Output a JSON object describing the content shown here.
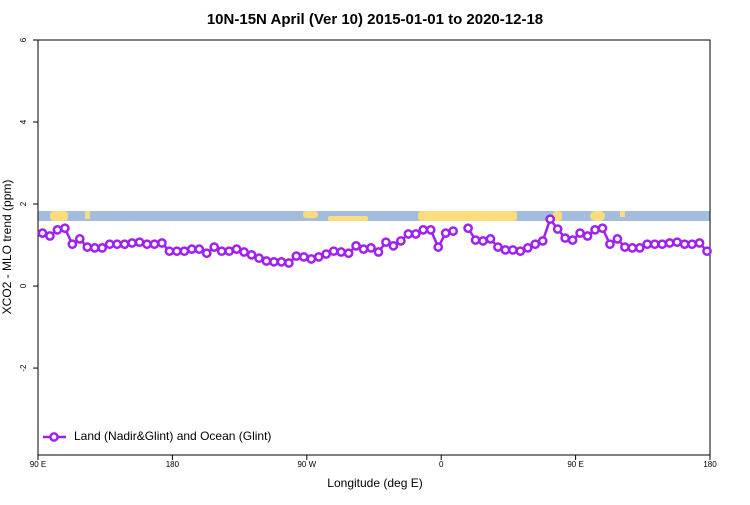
{
  "chart_data": {
    "type": "line",
    "title": "10N-15N April (Ver 10)   2015-01-01 to 2020-12-18",
    "x_label": "Longitude (deg E)",
    "y_label": "XCO2 - MLO trend (ppm)",
    "xlim": [
      90,
      540
    ],
    "xticks": [
      {
        "value": 90,
        "label": "90 E"
      },
      180,
      {
        "value": 270,
        "label": "90 W"
      },
      {
        "value": 360,
        "label": "0"
      },
      {
        "value": 450,
        "label": "90 E"
      },
      {
        "value": 540,
        "label": "180"
      }
    ],
    "ylim": [
      -4.12,
      6
    ],
    "yticks": [
      -2,
      0,
      2,
      4,
      6
    ],
    "legend": "bottom-left",
    "x": [
      93,
      98,
      103,
      108,
      113,
      118,
      123,
      128,
      133,
      138,
      143,
      148,
      153,
      158,
      163,
      168,
      173,
      178,
      183,
      188,
      193,
      198,
      203,
      208,
      213,
      218,
      223,
      228,
      233,
      238,
      243,
      248,
      253,
      258,
      263,
      268,
      273,
      278,
      283,
      288,
      293,
      298,
      303,
      308,
      313,
      318,
      323,
      328,
      333,
      338,
      343,
      348,
      353,
      358,
      363,
      368,
      373,
      378,
      383,
      388,
      393,
      398,
      403,
      408,
      413,
      418,
      423,
      428,
      433,
      438,
      443,
      448,
      453,
      458,
      463,
      468,
      473,
      478,
      483,
      488,
      493,
      498,
      503,
      508,
      513,
      518,
      523,
      528,
      533,
      538
    ],
    "series": [
      {
        "name": "Land (Nadir&Glint) and Ocean (Glint)",
        "color": "#a020f0",
        "values": [
          1.29,
          1.22,
          1.37,
          1.41,
          1.02,
          1.15,
          0.95,
          0.93,
          0.93,
          1.02,
          1.02,
          1.02,
          1.05,
          1.07,
          1.02,
          1.02,
          1.05,
          0.85,
          0.85,
          0.85,
          0.9,
          0.9,
          0.8,
          0.95,
          0.85,
          0.85,
          0.9,
          0.83,
          0.76,
          0.68,
          0.61,
          0.59,
          0.59,
          0.56,
          0.73,
          0.71,
          0.66,
          0.71,
          0.78,
          0.85,
          0.83,
          0.8,
          0.98,
          0.9,
          0.93,
          0.83,
          1.07,
          0.98,
          1.1,
          1.27,
          1.27,
          1.37,
          1.37,
          0.95,
          1.29,
          1.34,
          null,
          1.41,
          1.12,
          1.1,
          1.15,
          0.95,
          0.88,
          0.88,
          0.85,
          0.93,
          1.02,
          1.1,
          1.63,
          1.39,
          1.17,
          1.12,
          1.29,
          1.22,
          1.37,
          1.41,
          1.02,
          1.15,
          0.95,
          0.93,
          0.93,
          1.02,
          1.02,
          1.02,
          1.05,
          1.07,
          1.02,
          1.02,
          1.05,
          0.85
        ]
      }
    ]
  }
}
